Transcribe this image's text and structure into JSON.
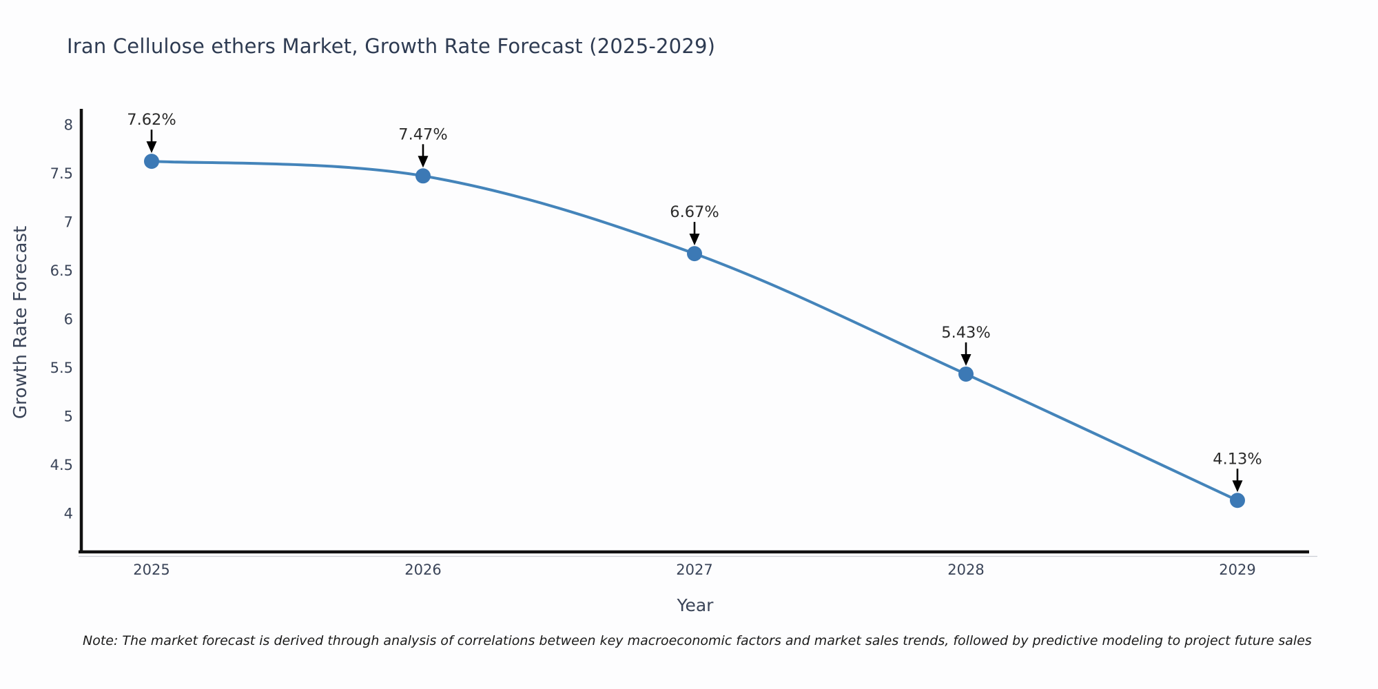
{
  "note": "Note: The market forecast is derived through analysis of correlations between key macroeconomic factors and market sales trends, followed by predictive modeling to project future sales",
  "colors": {
    "line": "#4484ba",
    "marker": "#3c79b5",
    "axis": "#111111",
    "axis_shadow": "#cbced4",
    "tick_label": "#3a4458",
    "annotation": "#2b2b2b",
    "title": "#2e3b52",
    "background": "#fdfdfe"
  },
  "chart_data": {
    "type": "line",
    "title": "Iran Cellulose ethers Market, Growth Rate Forecast (2025-2029)",
    "xlabel": "Year",
    "ylabel": "Growth Rate Forecast",
    "categories": [
      "2025",
      "2026",
      "2027",
      "2028",
      "2029"
    ],
    "series": [
      {
        "name": "Growth Rate Forecast",
        "values": [
          7.62,
          7.47,
          6.67,
          5.43,
          4.13
        ],
        "point_labels": [
          "7.62%",
          "7.47%",
          "6.67%",
          "5.43%",
          "4.13%"
        ]
      }
    ],
    "ylim": [
      3.6,
      8.16
    ],
    "yticks": [
      4,
      4.5,
      5,
      5.5,
      6,
      6.5,
      7,
      7.5,
      8
    ],
    "grid": false,
    "legend": false,
    "smooth": true,
    "annotations": "value labels with downward arrows above each data point"
  }
}
